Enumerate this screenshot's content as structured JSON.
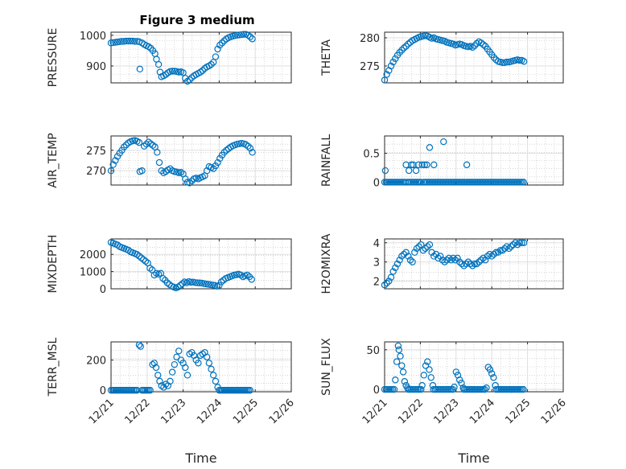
{
  "figure_title": "Figure 3 medium",
  "colors": {
    "marker": "#0072bd",
    "axis": "#262626",
    "grid": "#dfdfdf"
  },
  "x_ticks": [
    "12/21",
    "12/22",
    "12/23",
    "12/24",
    "12/25",
    "12/26"
  ],
  "x_label": "Time",
  "chart_data": [
    {
      "type": "scatter",
      "ylabel": "PRESSURE",
      "xlim": [
        21,
        26
      ],
      "ylim": [
        845,
        1010
      ],
      "yticks": [
        900,
        1000
      ],
      "grid": true,
      "series": [
        {
          "x": [
            21.0,
            21.06,
            21.12,
            21.18,
            21.24,
            21.3,
            21.36,
            21.42,
            21.48,
            21.54,
            21.6,
            21.66,
            21.72,
            21.78,
            21.8,
            21.86,
            21.92,
            21.98,
            22.04,
            22.1,
            22.16,
            22.22,
            22.26,
            22.32,
            22.36,
            22.4,
            22.46,
            22.52,
            22.58,
            22.64,
            22.7,
            22.76,
            22.82,
            22.88,
            22.94,
            23.0,
            23.06,
            23.12,
            23.18,
            23.24,
            23.3,
            23.36,
            23.42,
            23.48,
            23.54,
            23.6,
            23.66,
            23.72,
            23.78,
            23.84,
            23.9,
            23.96,
            24.02,
            24.08,
            24.14,
            24.2,
            24.26,
            24.32,
            24.38,
            24.44,
            24.5,
            24.56,
            24.62,
            24.68,
            24.74,
            24.8,
            24.86,
            24.92
          ],
          "y": [
            975,
            976,
            977,
            978,
            979,
            980,
            980,
            981,
            981,
            981,
            981,
            980,
            980,
            979,
            890,
            975,
            970,
            966,
            963,
            958,
            950,
            940,
            922,
            905,
            880,
            865,
            868,
            872,
            878,
            882,
            883,
            883,
            882,
            880,
            881,
            878,
            860,
            850,
            855,
            862,
            868,
            872,
            876,
            880,
            885,
            892,
            897,
            900,
            905,
            912,
            930,
            955,
            968,
            975,
            982,
            988,
            992,
            995,
            997,
            999,
            1000,
            1001,
            1002,
            1003,
            1003,
            1000,
            995,
            988
          ]
        }
      ]
    },
    {
      "type": "scatter",
      "ylabel": "THETA",
      "xlim": [
        21,
        26
      ],
      "ylim": [
        272,
        281
      ],
      "yticks": [
        275,
        280
      ],
      "grid": true,
      "series": [
        {
          "x": [
            21.0,
            21.06,
            21.12,
            21.18,
            21.24,
            21.3,
            21.36,
            21.42,
            21.48,
            21.54,
            21.6,
            21.66,
            21.72,
            21.78,
            21.84,
            21.9,
            21.96,
            22.02,
            22.08,
            22.14,
            22.2,
            22.26,
            22.32,
            22.38,
            22.44,
            22.5,
            22.56,
            22.62,
            22.68,
            22.74,
            22.8,
            22.86,
            22.92,
            22.98,
            23.04,
            23.1,
            23.16,
            23.22,
            23.28,
            23.34,
            23.4,
            23.46,
            23.52,
            23.58,
            23.64,
            23.7,
            23.76,
            23.82,
            23.88,
            23.94,
            24.0,
            24.06,
            24.12,
            24.18,
            24.24,
            24.3,
            24.36,
            24.42,
            24.48,
            24.54,
            24.6,
            24.66,
            24.72,
            24.78,
            24.84,
            24.9
          ],
          "y": [
            272.5,
            273.5,
            274.2,
            275.0,
            275.7,
            276.3,
            276.9,
            277.4,
            277.8,
            278.2,
            278.5,
            278.9,
            279.2,
            279.5,
            279.7,
            279.9,
            280.1,
            280.2,
            280.3,
            280.4,
            280.3,
            280.1,
            279.9,
            280.0,
            279.8,
            279.7,
            279.6,
            279.5,
            279.4,
            279.2,
            279.1,
            279.0,
            278.9,
            278.7,
            278.8,
            278.9,
            278.8,
            278.6,
            278.5,
            278.4,
            278.5,
            278.3,
            278.6,
            279.0,
            279.3,
            279.1,
            278.8,
            278.5,
            278.0,
            277.5,
            277.0,
            276.5,
            276.1,
            275.8,
            275.7,
            275.6,
            275.6,
            275.7,
            275.7,
            275.8,
            275.9,
            276.0,
            276.1,
            276.0,
            276.0,
            275.8
          ]
        }
      ]
    },
    {
      "type": "scatter",
      "ylabel": "AIR_TEMP",
      "xlim": [
        21,
        26
      ],
      "ylim": [
        266.5,
        278.5
      ],
      "yticks": [
        270,
        275
      ],
      "grid": true,
      "series": [
        {
          "x": [
            21.0,
            21.06,
            21.12,
            21.18,
            21.24,
            21.3,
            21.36,
            21.42,
            21.48,
            21.54,
            21.6,
            21.66,
            21.72,
            21.78,
            21.8,
            21.86,
            21.92,
            21.98,
            22.04,
            22.1,
            22.16,
            22.22,
            22.28,
            22.34,
            22.4,
            22.46,
            22.52,
            22.58,
            22.64,
            22.7,
            22.76,
            22.82,
            22.88,
            22.94,
            23.0,
            23.06,
            23.12,
            23.18,
            23.24,
            23.3,
            23.36,
            23.42,
            23.48,
            23.54,
            23.6,
            23.66,
            23.72,
            23.78,
            23.84,
            23.9,
            23.96,
            24.02,
            24.08,
            24.14,
            24.2,
            24.26,
            24.32,
            24.38,
            24.44,
            24.5,
            24.56,
            24.62,
            24.68,
            24.74,
            24.8,
            24.86,
            24.92
          ],
          "y": [
            270.0,
            271.5,
            272.5,
            273.5,
            274.3,
            275.0,
            275.8,
            276.3,
            276.8,
            277.1,
            277.3,
            277.4,
            277.2,
            276.9,
            269.8,
            270.0,
            276.0,
            276.5,
            277.0,
            276.6,
            276.2,
            275.8,
            274.5,
            272.0,
            270.0,
            269.5,
            269.8,
            270.2,
            270.5,
            270.0,
            269.8,
            269.7,
            269.5,
            269.6,
            269.2,
            268.0,
            267.2,
            267.0,
            267.5,
            268.0,
            268.2,
            268.0,
            268.3,
            268.5,
            268.8,
            270.0,
            271.0,
            270.8,
            270.5,
            271.2,
            272.0,
            273.0,
            273.8,
            274.5,
            275.0,
            275.4,
            275.8,
            276.1,
            276.3,
            276.5,
            276.6,
            276.7,
            276.6,
            276.4,
            276.0,
            275.5,
            274.5
          ]
        }
      ]
    },
    {
      "type": "scatter",
      "ylabel": "RAINFALL",
      "xlim": [
        21,
        26
      ],
      "ylim": [
        -0.05,
        0.8
      ],
      "yticks": [
        0,
        0.5
      ],
      "grid": true,
      "series": [
        {
          "x": [
            21.02,
            21.6,
            21.68,
            21.75,
            21.8,
            21.88,
            21.95,
            22.05,
            22.12,
            22.18,
            22.26,
            22.38,
            22.65,
            23.3
          ],
          "y": [
            0.2,
            0.3,
            0.2,
            0.3,
            0.3,
            0.2,
            0.3,
            0.3,
            0.3,
            0.3,
            0.6,
            0.3,
            0.7,
            0.3
          ],
          "zero_runs": [
            [
              21.0,
              21.6
            ],
            [
              21.65,
              22.02
            ],
            [
              22.1,
              24.92
            ]
          ]
        }
      ]
    },
    {
      "type": "scatter",
      "ylabel": "MIXDEPTH",
      "xlim": [
        21,
        26
      ],
      "ylim": [
        0,
        2900
      ],
      "yticks": [
        0,
        1000,
        2000
      ],
      "grid": true,
      "series": [
        {
          "x": [
            21.0,
            21.06,
            21.12,
            21.18,
            21.24,
            21.3,
            21.36,
            21.42,
            21.48,
            21.54,
            21.6,
            21.66,
            21.72,
            21.78,
            21.84,
            21.9,
            21.96,
            22.02,
            22.08,
            22.14,
            22.2,
            22.26,
            22.32,
            22.38,
            22.44,
            22.5,
            22.56,
            22.62,
            22.68,
            22.74,
            22.8,
            22.86,
            22.92,
            22.98,
            23.04,
            23.1,
            23.16,
            23.22,
            23.28,
            23.34,
            23.4,
            23.46,
            23.52,
            23.58,
            23.64,
            23.7,
            23.76,
            23.82,
            23.88,
            23.94,
            24.0,
            24.06,
            24.12,
            24.18,
            24.24,
            24.3,
            24.36,
            24.42,
            24.48,
            24.54,
            24.6,
            24.66,
            24.72,
            24.78,
            24.84,
            24.9
          ],
          "y": [
            2700,
            2650,
            2600,
            2550,
            2450,
            2400,
            2350,
            2300,
            2250,
            2150,
            2100,
            2050,
            2000,
            1900,
            1800,
            1700,
            1600,
            1500,
            1200,
            1100,
            800,
            900,
            850,
            900,
            600,
            500,
            350,
            250,
            150,
            100,
            50,
            100,
            200,
            300,
            400,
            350,
            420,
            380,
            390,
            360,
            350,
            340,
            330,
            300,
            280,
            260,
            240,
            220,
            200,
            150,
            200,
            400,
            500,
            600,
            650,
            700,
            750,
            800,
            820,
            850,
            800,
            700,
            750,
            800,
            700,
            550
          ]
        }
      ]
    },
    {
      "type": "scatter",
      "ylabel": "H2OMIXRA",
      "xlim": [
        21,
        26
      ],
      "ylim": [
        1.6,
        4.2
      ],
      "yticks": [
        2,
        3,
        4
      ],
      "grid": true,
      "series": [
        {
          "x": [
            21.0,
            21.06,
            21.12,
            21.18,
            21.24,
            21.3,
            21.36,
            21.42,
            21.48,
            21.54,
            21.6,
            21.66,
            21.72,
            21.78,
            21.84,
            21.9,
            21.96,
            22.02,
            22.08,
            22.14,
            22.2,
            22.26,
            22.32,
            22.38,
            22.44,
            22.5,
            22.56,
            22.62,
            22.68,
            22.74,
            22.8,
            22.86,
            22.92,
            22.98,
            23.04,
            23.1,
            23.16,
            23.22,
            23.28,
            23.34,
            23.4,
            23.46,
            23.52,
            23.58,
            23.64,
            23.7,
            23.76,
            23.82,
            23.88,
            23.94,
            24.0,
            24.06,
            24.12,
            24.18,
            24.24,
            24.3,
            24.36,
            24.42,
            24.48,
            24.54,
            24.6,
            24.66,
            24.72,
            24.78,
            24.84,
            24.9
          ],
          "y": [
            1.8,
            1.9,
            2.0,
            2.2,
            2.5,
            2.7,
            2.9,
            3.1,
            3.3,
            3.4,
            3.5,
            3.3,
            3.1,
            3.0,
            3.5,
            3.7,
            3.8,
            3.9,
            3.6,
            3.7,
            3.8,
            3.9,
            3.5,
            3.3,
            3.4,
            3.2,
            3.3,
            3.1,
            3.0,
            3.1,
            3.2,
            3.1,
            3.2,
            3.1,
            3.2,
            3.0,
            2.9,
            2.8,
            2.9,
            3.0,
            2.9,
            2.8,
            2.9,
            2.9,
            3.0,
            3.1,
            3.2,
            3.1,
            3.3,
            3.4,
            3.3,
            3.4,
            3.5,
            3.5,
            3.6,
            3.6,
            3.7,
            3.8,
            3.7,
            3.8,
            3.9,
            4.0,
            3.9,
            4.0,
            4.0,
            4.0
          ]
        }
      ]
    },
    {
      "type": "scatter",
      "ylabel": "TERR_MSL",
      "xlim": [
        21,
        26
      ],
      "ylim": [
        -10,
        320
      ],
      "yticks": [
        0,
        200
      ],
      "grid": true,
      "series": [
        {
          "x": [
            21.78,
            21.82,
            22.15,
            22.2,
            22.25,
            22.3,
            22.35,
            22.4,
            22.46,
            22.52,
            22.58,
            22.64,
            22.7,
            22.76,
            22.82,
            22.88,
            22.94,
            23.0,
            23.06,
            23.12,
            23.18,
            23.24,
            23.3,
            23.36,
            23.42,
            23.48,
            23.54,
            23.6,
            23.66,
            23.72,
            23.78,
            23.84,
            23.9,
            23.96
          ],
          "y": [
            300,
            290,
            170,
            180,
            150,
            100,
            60,
            30,
            20,
            40,
            30,
            60,
            120,
            170,
            220,
            260,
            200,
            180,
            150,
            100,
            240,
            250,
            230,
            200,
            180,
            230,
            240,
            250,
            220,
            180,
            140,
            100,
            60,
            20
          ],
          "zero_runs": [
            [
              21.0,
              21.75
            ],
            [
              21.86,
              22.12
            ],
            [
              24.0,
              24.88
            ]
          ]
        }
      ]
    },
    {
      "type": "scatter",
      "ylabel": "SUN_FLUX",
      "xlim": [
        21,
        26
      ],
      "ylim": [
        -3,
        60
      ],
      "yticks": [
        0,
        50
      ],
      "grid": true,
      "series": [
        {
          "x": [
            21.3,
            21.34,
            21.38,
            21.4,
            21.44,
            21.48,
            21.52,
            21.56,
            21.6,
            21.64,
            22.05,
            22.1,
            22.15,
            22.2,
            22.25,
            22.3,
            22.35,
            22.95,
            23.0,
            23.05,
            23.1,
            23.15,
            23.2,
            23.85,
            23.9,
            23.95,
            24.0,
            24.05,
            24.1
          ],
          "y": [
            12,
            35,
            55,
            50,
            42,
            30,
            22,
            10,
            5,
            2,
            5,
            18,
            30,
            35,
            25,
            15,
            5,
            3,
            22,
            18,
            12,
            8,
            2,
            2,
            28,
            25,
            20,
            15,
            5
          ],
          "zero_runs": [
            [
              21.0,
              21.28
            ],
            [
              21.66,
              22.03
            ],
            [
              22.37,
              22.93
            ],
            [
              23.22,
              23.83
            ],
            [
              24.12,
              24.9
            ]
          ]
        }
      ]
    }
  ]
}
